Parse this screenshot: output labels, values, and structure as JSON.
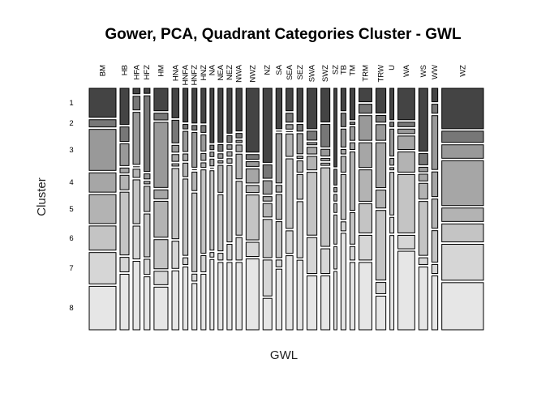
{
  "chart_data": {
    "type": "mosaic",
    "title": "Gower, PCA, Quadrant Categories Cluster - GWL",
    "xlabel": "GWL",
    "ylabel": "Cluster",
    "clusters": [
      "1",
      "2",
      "3",
      "4",
      "5",
      "6",
      "7",
      "8"
    ],
    "cluster_colors": [
      "#444444",
      "#777777",
      "#999999",
      "#a6a6a6",
      "#b3b3b3",
      "#c4c4c4",
      "#d6d6d6",
      "#e6e6e6"
    ],
    "categories": [
      "BM",
      "HB",
      "HFA",
      "HFZ",
      "HM",
      "HNA",
      "HNFA",
      "HNFZ",
      "HNZ",
      "NA",
      "NEA",
      "NEZ",
      "NWA",
      "NWZ",
      "NZ",
      "SA",
      "SEA",
      "SEZ",
      "SWA",
      "SWZ",
      "SZ",
      "TB",
      "TM",
      "TRM",
      "TRW",
      "U",
      "WA",
      "WS",
      "WW",
      "WZ"
    ],
    "category_widths": [
      27,
      9,
      7,
      6,
      14,
      7,
      5,
      5,
      5,
      4,
      5,
      5,
      6,
      13,
      9,
      6,
      7,
      6,
      10,
      9,
      3,
      5,
      5,
      13,
      10,
      4,
      17,
      9,
      6,
      42
    ],
    "proportions": [
      [
        0.12,
        0.03,
        0.17,
        0.08,
        0.12,
        0.1,
        0.13,
        0.18
      ],
      [
        0.15,
        0.06,
        0.09,
        0.02,
        0.06,
        0.26,
        0.06,
        0.23
      ],
      [
        0.02,
        0.05,
        0.19,
        0.0,
        0.03,
        0.16,
        0.12,
        0.25
      ],
      [
        0.02,
        0.3,
        0.02,
        0.01,
        0.1,
        0.17,
        0.06,
        0.21
      ],
      [
        0.1,
        0.03,
        0.29,
        0.04,
        0.16,
        0.13,
        0.06,
        0.19
      ],
      [
        0.13,
        0.1,
        0.03,
        0.03,
        0.01,
        0.31,
        0.12,
        0.26
      ],
      [
        0.15,
        0.02,
        0.09,
        0.03,
        0.06,
        0.34,
        0.03,
        0.28
      ],
      [
        0.15,
        0.02,
        0.15,
        0.0,
        0.08,
        0.34,
        0.03,
        0.2
      ],
      [
        0.15,
        0.03,
        0.07,
        0.03,
        0.02,
        0.36,
        0.07,
        0.24
      ],
      [
        0.24,
        0.02,
        0.02,
        0.03,
        0.0,
        0.35,
        0.02,
        0.31
      ],
      [
        0.24,
        0.03,
        0.02,
        0.01,
        0.12,
        0.25,
        0.03,
        0.3
      ],
      [
        0.2,
        0.03,
        0.02,
        0.02,
        0.02,
        0.34,
        0.07,
        0.3
      ],
      [
        0.19,
        0.02,
        0.01,
        0.03,
        0.11,
        0.24,
        0.1,
        0.3
      ],
      [
        0.27,
        0.02,
        0.02,
        0.06,
        0.03,
        0.19,
        0.06,
        0.3
      ],
      [
        0.33,
        0.06,
        0.06,
        0.02,
        0.06,
        0.17,
        0.16,
        0.14
      ],
      [
        0.18,
        0.0,
        0.22,
        0.03,
        0.11,
        0.16,
        0.03,
        0.27
      ],
      [
        0.1,
        0.04,
        0.02,
        0.0,
        0.1,
        0.31,
        0.1,
        0.33
      ],
      [
        0.15,
        0.03,
        0.09,
        0.01,
        0.05,
        0.11,
        0.25,
        0.31
      ],
      [
        0.18,
        0.04,
        0.01,
        0.03,
        0.06,
        0.28,
        0.16,
        0.24
      ],
      [
        0.15,
        0.1,
        0.03,
        0.01,
        0.01,
        0.35,
        0.11,
        0.24
      ],
      [
        0.35,
        0.07,
        0.02,
        0.03,
        0.04,
        0.13,
        0.1,
        0.26
      ],
      [
        0.1,
        0.06,
        0.08,
        0.02,
        0.07,
        0.2,
        0.04,
        0.43
      ],
      [
        0.14,
        0.01,
        0.06,
        0.03,
        0.26,
        0.14,
        0.06,
        0.3
      ],
      [
        0.06,
        0.04,
        0.11,
        0.11,
        0.14,
        0.13,
        0.11,
        0.3
      ],
      [
        0.11,
        0.03,
        0.07,
        0.2,
        0.08,
        0.31,
        0.05,
        0.15
      ],
      [
        0.14,
        0.02,
        0.12,
        0.03,
        0.01,
        0.19,
        0.07,
        0.42
      ],
      [
        0.14,
        0.02,
        0.02,
        0.06,
        0.09,
        0.26,
        0.06,
        0.35
      ],
      [
        0.28,
        0.05,
        0.02,
        0.03,
        0.07,
        0.24,
        0.03,
        0.28
      ],
      [
        0.06,
        0.04,
        0.24,
        0.11,
        0.13,
        0.14,
        0.04,
        0.24
      ],
      [
        0.18,
        0.05,
        0.06,
        0.2,
        0.06,
        0.08,
        0.16,
        0.21
      ]
    ]
  }
}
